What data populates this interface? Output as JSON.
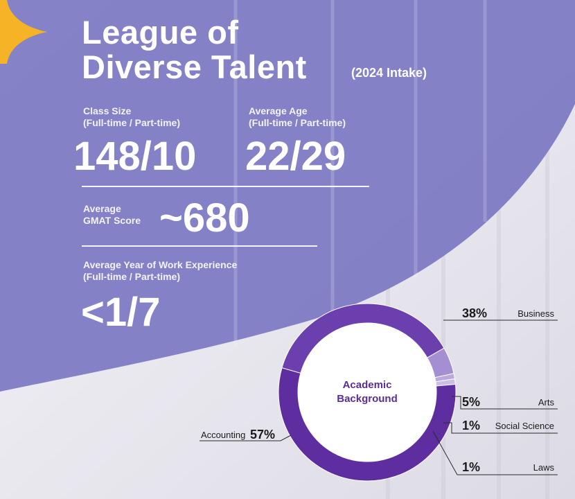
{
  "header": {
    "title_line1": "League of",
    "title_line2": "Diverse Talent",
    "intake": "(2024 Intake)"
  },
  "stats": {
    "class_size": {
      "label_line1": "Class Size",
      "label_line2": "(Full-time / Part-time)",
      "value": "148/10"
    },
    "average_age": {
      "label_line1": "Average Age",
      "label_line2": "(Full-time / Part-time)",
      "value": "22/29"
    },
    "gmat": {
      "label_line1": "Average",
      "label_line2": "GMAT Score",
      "value": "~680"
    },
    "work_experience": {
      "label_line1": "Average Year of Work Experience",
      "label_line2": "(Full-time / Part-time)",
      "value": "<1/7"
    }
  },
  "colors": {
    "purple_wash": "#7c78c3",
    "accent_star": "#f5b325",
    "donut_dark": "#5a2a9a",
    "donut_mid": "#7a52b4",
    "donut_light": "#b49ed8",
    "donut_label": "#5b2d96"
  },
  "chart_data": {
    "type": "pie",
    "title_line1": "Academic",
    "title_line2": "Background",
    "categories": [
      "Business",
      "Arts",
      "Social Science",
      "Laws",
      "Accounting"
    ],
    "values": [
      38,
      5,
      1,
      1,
      57
    ],
    "value_labels": [
      "38%",
      "5%",
      "1%",
      "1%",
      "57%"
    ],
    "colors": [
      "#6c3fae",
      "#a58fd3",
      "#b9a9df",
      "#cbbfe8",
      "#5e2d9f"
    ]
  }
}
